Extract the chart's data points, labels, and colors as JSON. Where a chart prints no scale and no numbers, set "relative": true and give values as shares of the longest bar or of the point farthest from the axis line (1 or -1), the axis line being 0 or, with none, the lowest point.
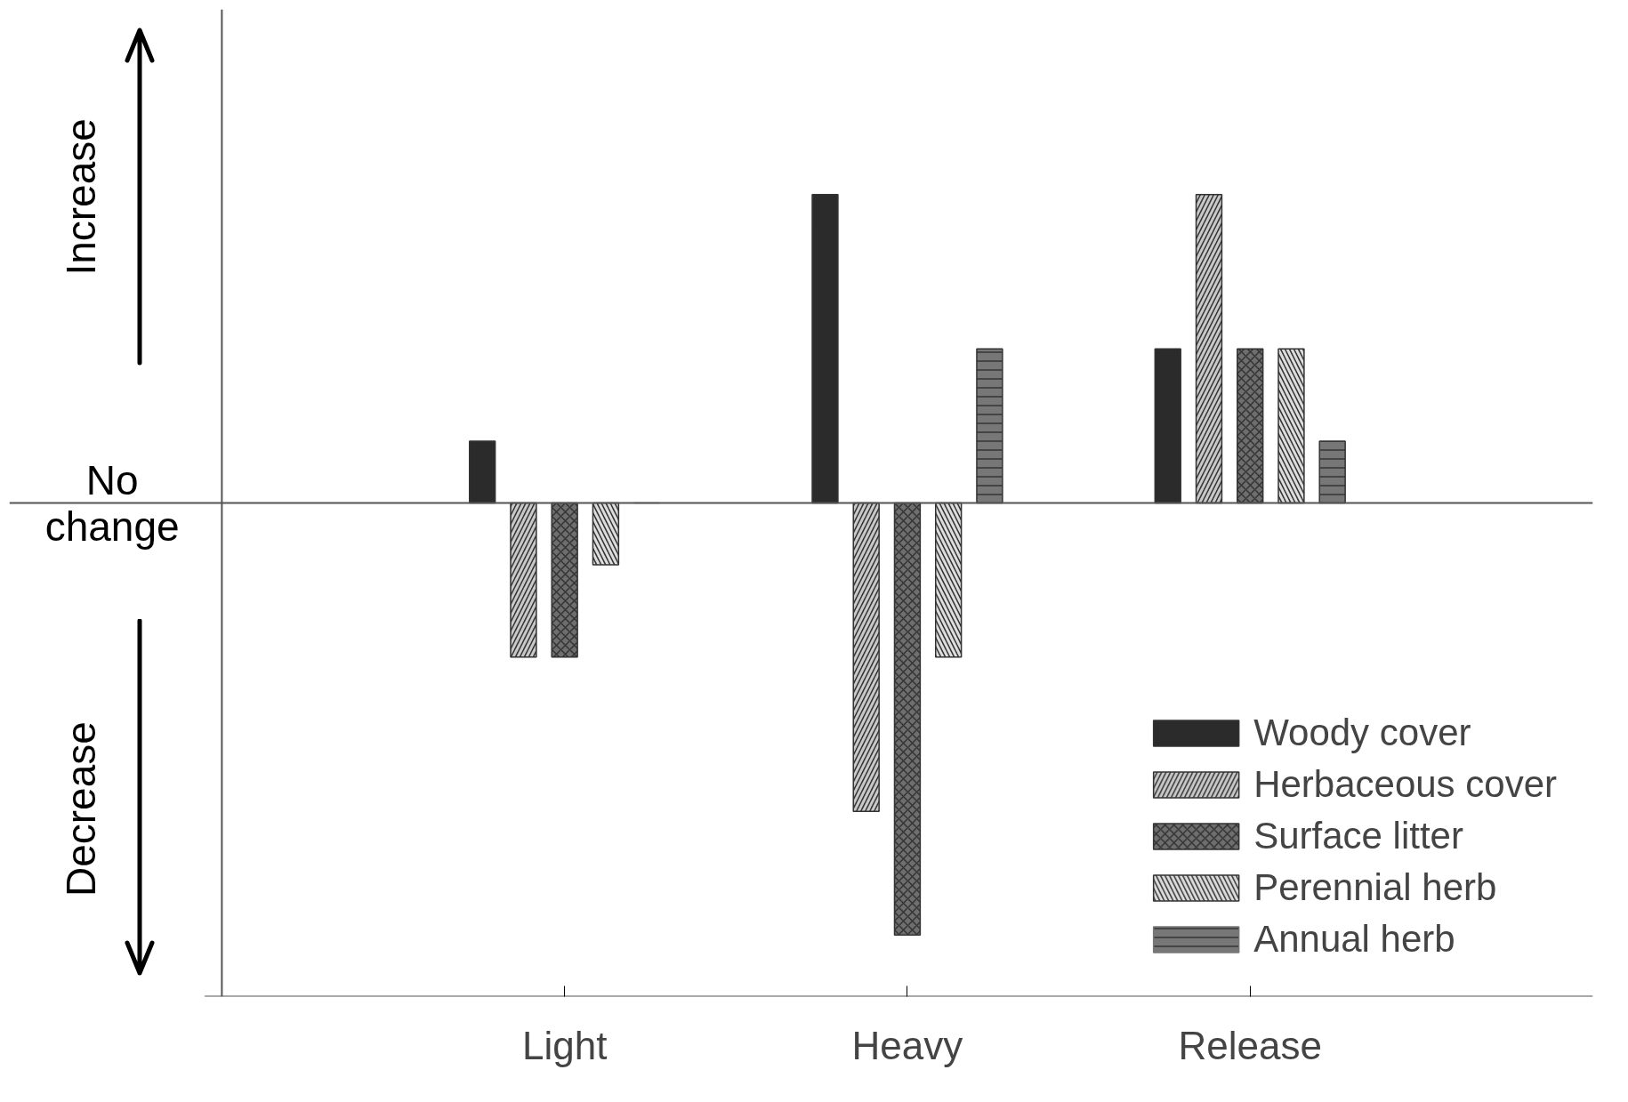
{
  "chart_data": {
    "type": "bar",
    "relative": true,
    "categories": [
      "Light",
      "Heavy",
      "Release"
    ],
    "series": [
      {
        "name": "Woody cover",
        "color": "#2b2b2b",
        "values": [
          0.143,
          0.714,
          0.357
        ]
      },
      {
        "name": "Herbaceous cover",
        "color": "#c8c8c8",
        "values": [
          -0.357,
          -0.714,
          0.714
        ]
      },
      {
        "name": "Surface litter",
        "color": "#6e6e6e",
        "values": [
          -0.357,
          -1,
          0.357
        ]
      },
      {
        "name": "Perennial herb",
        "color": "#dcdcdc",
        "values": [
          -0.143,
          -0.357,
          0.357
        ]
      },
      {
        "name": "Annual herb",
        "color": "#777777",
        "values": [
          0,
          0.357,
          0.143
        ]
      }
    ],
    "annotations": [
      "Increase",
      "No change",
      "Decrease"
    ],
    "legend": "bottom right",
    "tick_labels": "x",
    "grid": false
  }
}
